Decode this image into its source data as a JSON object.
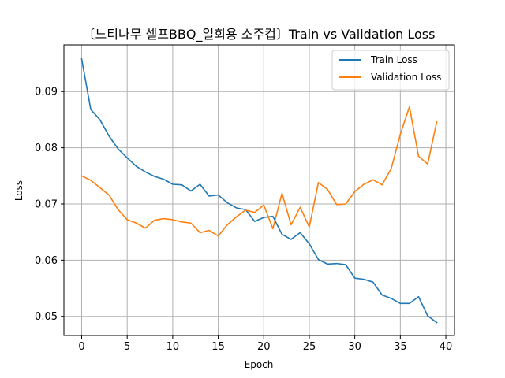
{
  "chart_data": {
    "type": "line",
    "title": "〔느티나무 셀프BBQ_일회용 소주컵〕Train vs Validation Loss",
    "xlabel": "Epoch",
    "ylabel": "Loss",
    "xlim": [
      -1.95,
      40.95
    ],
    "ylim": [
      0.0466,
      0.0983
    ],
    "xticks": [
      0,
      5,
      10,
      15,
      20,
      25,
      30,
      35,
      40
    ],
    "yticks": [
      0.05,
      0.06,
      0.07,
      0.08,
      0.09
    ],
    "ytick_labels": [
      "0.05",
      "0.06",
      "0.07",
      "0.08",
      "0.09"
    ],
    "grid": true,
    "legend_position": "top-right",
    "x": [
      0,
      1,
      2,
      3,
      4,
      5,
      6,
      7,
      8,
      9,
      10,
      11,
      12,
      13,
      14,
      15,
      16,
      17,
      18,
      19,
      20,
      21,
      22,
      23,
      24,
      25,
      26,
      27,
      28,
      29,
      30,
      31,
      32,
      33,
      34,
      35,
      36,
      37,
      38,
      39
    ],
    "series": [
      {
        "name": "Train Loss",
        "color": "#1f77b4",
        "values": [
          0.0958,
          0.0868,
          0.085,
          0.0821,
          0.0798,
          0.0782,
          0.0767,
          0.0757,
          0.0749,
          0.0744,
          0.0735,
          0.0734,
          0.0723,
          0.0735,
          0.0714,
          0.0716,
          0.0702,
          0.0693,
          0.069,
          0.0669,
          0.0676,
          0.0678,
          0.0646,
          0.0637,
          0.0649,
          0.0629,
          0.0601,
          0.0593,
          0.0594,
          0.0592,
          0.0568,
          0.0566,
          0.0561,
          0.0538,
          0.0532,
          0.0523,
          0.0523,
          0.0535,
          0.0501,
          0.0489
        ]
      },
      {
        "name": "Validation Loss",
        "color": "#ff7f0e",
        "values": [
          0.075,
          0.0742,
          0.0729,
          0.0716,
          0.069,
          0.0672,
          0.0666,
          0.0657,
          0.0671,
          0.0674,
          0.0672,
          0.0668,
          0.0666,
          0.0649,
          0.0653,
          0.0643,
          0.0663,
          0.0677,
          0.0689,
          0.0685,
          0.0698,
          0.0656,
          0.0719,
          0.0663,
          0.0694,
          0.0659,
          0.0738,
          0.0726,
          0.0699,
          0.07,
          0.0722,
          0.0735,
          0.0743,
          0.0734,
          0.0763,
          0.0824,
          0.0873,
          0.0785,
          0.0771,
          0.0846
        ]
      }
    ]
  }
}
